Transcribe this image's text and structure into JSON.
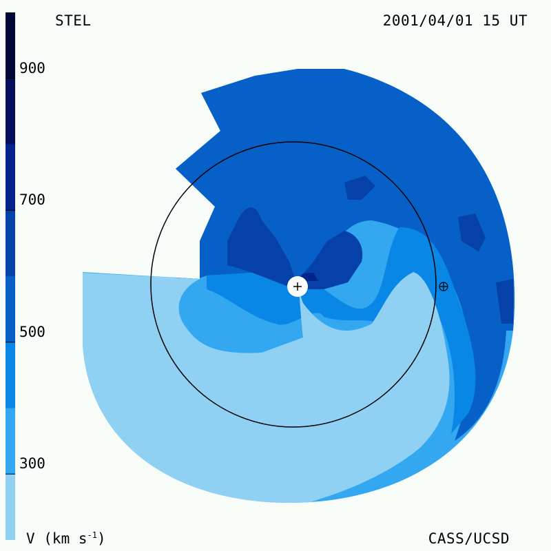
{
  "header": {
    "source_label": "STEL",
    "timestamp": "2001/04/01 15 UT"
  },
  "footer": {
    "units_prefix": "V (km s",
    "units_exponent": "-1",
    "units_suffix": ")",
    "credit": "CASS/UCSD"
  },
  "colors": {
    "background": "#f7fcf9",
    "levels": [
      "#8fd0f3",
      "#33a8f1",
      "#0887e6",
      "#0760c7",
      "#0640a9",
      "#05248b",
      "#040e5a",
      "#020735",
      "#01041d"
    ]
  },
  "chart_data": {
    "type": "heatmap",
    "title": "",
    "colorbar": {
      "label": "V (km s-1)",
      "tick_values": [
        300,
        500,
        700,
        900
      ],
      "tick_labels": [
        "300",
        "500",
        "700",
        "900"
      ],
      "range": [
        200,
        1000
      ],
      "level_edges": [
        200,
        300,
        400,
        500,
        600,
        700,
        800,
        900,
        1000
      ]
    },
    "markers": [
      {
        "name": "Sun",
        "symbol": "+"
      },
      {
        "name": "Earth",
        "symbol": "⊕"
      }
    ],
    "reference_circle": "Earth orbit"
  }
}
